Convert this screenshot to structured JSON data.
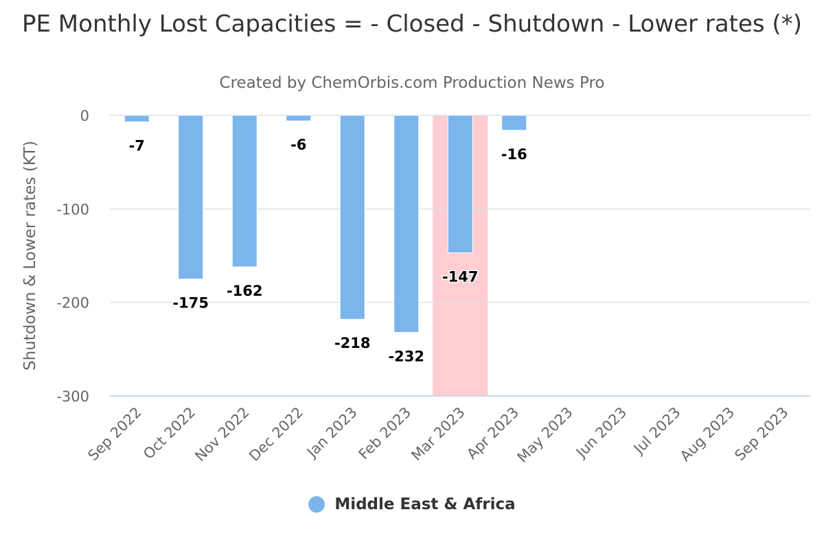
{
  "chart_data": {
    "type": "bar",
    "title": "PE Monthly Lost Capacities = - Closed - Shutdown - Lower rates (*)",
    "subtitle": "Created by ChemOrbis.com Production News Pro",
    "ylabel": "Shutdown & Lower rates (KT)",
    "ylim": [
      -300,
      0
    ],
    "yticks": [
      0,
      -100,
      -200,
      -300
    ],
    "categories": [
      "Sep 2022",
      "Oct 2022",
      "Nov 2022",
      "Dec 2022",
      "Jan 2023",
      "Feb 2023",
      "Mar 2023",
      "Apr 2023",
      "May 2023",
      "Jun 2023",
      "Jul 2023",
      "Aug 2023",
      "Sep 2023"
    ],
    "series": [
      {
        "name": "Middle East & Africa",
        "color": "#7cb5ec",
        "values": [
          -7,
          -175,
          -162,
          -6,
          -218,
          -232,
          -147,
          -16,
          null,
          null,
          null,
          null,
          null
        ]
      }
    ],
    "highlight_category": "Mar 2023",
    "highlight_color": "#ffcdd2",
    "grid": true,
    "legend_position": "bottom-center"
  }
}
